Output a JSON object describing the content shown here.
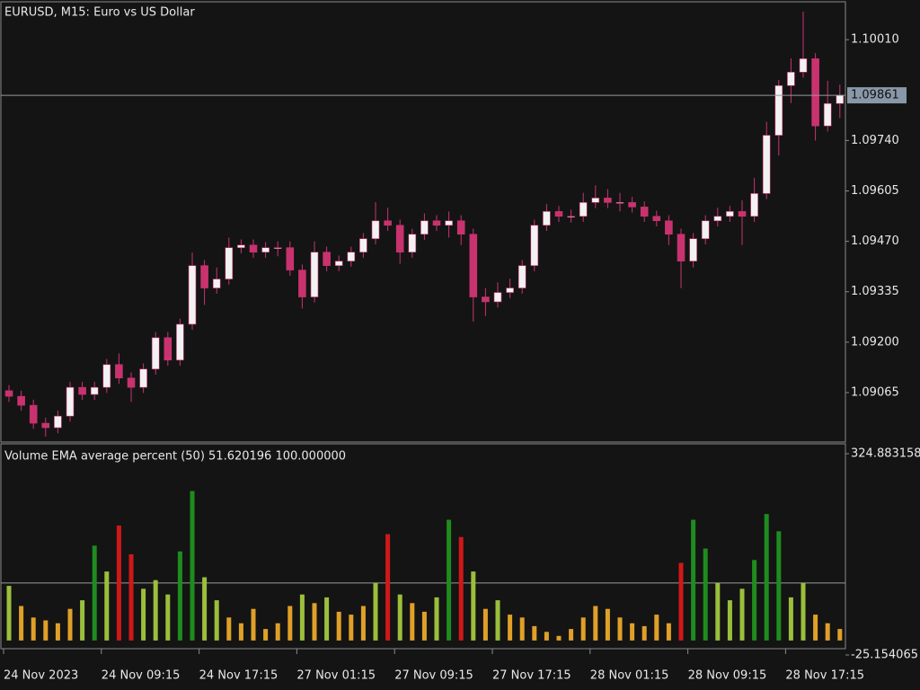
{
  "chart_data": [
    {
      "type": "candlestick",
      "title": "EURUSD, M15:  Euro vs US Dollar",
      "up_color": "#f2f2f2",
      "down_color": "#c8336f",
      "wick_color": "#c8336f",
      "open": [
        1.0907,
        1.09055,
        1.09031,
        1.08983,
        1.08971,
        1.09002,
        1.09079,
        1.0906,
        1.09079,
        1.0914,
        1.09104,
        1.09079,
        1.09128,
        1.09212,
        1.09152,
        1.09248,
        1.09405,
        1.09345,
        1.09369,
        1.09453,
        1.0946,
        1.09441,
        1.09453,
        1.09453,
        1.09393,
        1.09321,
        1.09441,
        1.09405,
        1.09417,
        1.09441,
        1.09477,
        1.09525,
        1.09513,
        1.09441,
        1.09489,
        1.09525,
        1.09513,
        1.09525,
        1.09489,
        1.09321,
        1.09308,
        1.09333,
        1.09345,
        1.09405,
        1.09513,
        1.0955,
        1.09537,
        1.09537,
        1.09574,
        1.09586,
        1.09574,
        1.09574,
        1.09562,
        1.09537,
        1.09525,
        1.09489,
        1.09417,
        1.09477,
        1.09525,
        1.09537,
        1.0955,
        1.09537,
        1.09598,
        1.09754,
        1.09887,
        1.09923,
        1.09959,
        1.09779,
        1.09839
      ],
      "high": [
        1.09085,
        1.0907,
        1.09046,
        1.08998,
        1.09017,
        1.09094,
        1.09094,
        1.09094,
        1.09155,
        1.0917,
        1.09119,
        1.09143,
        1.09227,
        1.09227,
        1.09263,
        1.0944,
        1.0942,
        1.094,
        1.0948,
        1.09475,
        1.09475,
        1.09468,
        1.0947,
        1.0947,
        1.09408,
        1.0947,
        1.09456,
        1.09432,
        1.09456,
        1.09492,
        1.09575,
        1.0956,
        1.09528,
        1.09504,
        1.09545,
        1.0954,
        1.0955,
        1.0954,
        1.09504,
        1.09345,
        1.0936,
        1.0937,
        1.0942,
        1.09528,
        1.0957,
        1.09565,
        1.09555,
        1.096,
        1.0962,
        1.0961,
        1.096,
        1.09589,
        1.09577,
        1.09552,
        1.0954,
        1.09504,
        1.09492,
        1.0954,
        1.0956,
        1.09565,
        1.0958,
        1.0964,
        1.0979,
        1.09902,
        1.0996,
        1.10085,
        1.09974,
        1.099,
        1.0989
      ],
      "low": [
        1.0904,
        1.09016,
        1.08968,
        1.08947,
        1.08956,
        1.08987,
        1.09045,
        1.09045,
        1.09064,
        1.09089,
        1.0904,
        1.09064,
        1.09113,
        1.09137,
        1.09137,
        1.09233,
        1.093,
        1.0933,
        1.09354,
        1.09438,
        1.09426,
        1.09426,
        1.0943,
        1.09378,
        1.0929,
        1.09306,
        1.0939,
        1.0939,
        1.09402,
        1.09426,
        1.09462,
        1.09498,
        1.0941,
        1.09426,
        1.09474,
        1.09498,
        1.0948,
        1.0946,
        1.09255,
        1.0927,
        1.09293,
        1.09318,
        1.0933,
        1.0939,
        1.09498,
        1.09522,
        1.0952,
        1.09522,
        1.09559,
        1.09559,
        1.0955,
        1.09547,
        1.09522,
        1.0951,
        1.0946,
        1.09345,
        1.094,
        1.09462,
        1.0951,
        1.09522,
        1.0946,
        1.09522,
        1.09583,
        1.097,
        1.0984,
        1.09908,
        1.0974,
        1.09764,
        1.098
      ],
      "close": [
        1.09055,
        1.09031,
        1.08983,
        1.08971,
        1.09002,
        1.09079,
        1.0906,
        1.09079,
        1.0914,
        1.09104,
        1.09079,
        1.09128,
        1.09212,
        1.09152,
        1.09248,
        1.09405,
        1.09345,
        1.09369,
        1.09453,
        1.0946,
        1.09441,
        1.09453,
        1.09453,
        1.09393,
        1.09321,
        1.09441,
        1.09405,
        1.09417,
        1.09441,
        1.09477,
        1.09525,
        1.09513,
        1.09441,
        1.09489,
        1.09525,
        1.09513,
        1.09525,
        1.09489,
        1.09321,
        1.09308,
        1.09333,
        1.09345,
        1.09405,
        1.09513,
        1.0955,
        1.09537,
        1.09537,
        1.09574,
        1.09586,
        1.09574,
        1.09574,
        1.09562,
        1.09537,
        1.09525,
        1.09489,
        1.09417,
        1.09477,
        1.09525,
        1.09537,
        1.0955,
        1.09537,
        1.09598,
        1.09754,
        1.09887,
        1.09923,
        1.09959,
        1.09779,
        1.09839,
        1.09861
      ],
      "last_price": 1.09861,
      "ylim": [
        1.08935,
        1.10109
      ],
      "yticks": [
        {
          "value": 1.1001,
          "label": "1.10010"
        },
        {
          "value": 1.0974,
          "label": "1.09740"
        },
        {
          "value": 1.09605,
          "label": "1.09605"
        },
        {
          "value": 1.0947,
          "label": "1.09470"
        },
        {
          "value": 1.09335,
          "label": "1.09335"
        },
        {
          "value": 1.092,
          "label": "1.09200"
        },
        {
          "value": 1.09065,
          "label": "1.09065"
        }
      ],
      "xticks": [
        {
          "value": 0,
          "label": "24 Nov 2023"
        },
        {
          "value": 8,
          "label": "24 Nov 09:15"
        },
        {
          "value": 16,
          "label": "24 Nov 17:15"
        },
        {
          "value": 24,
          "label": "27 Nov 01:15"
        },
        {
          "value": 32,
          "label": "27 Nov 09:15"
        },
        {
          "value": 40,
          "label": "27 Nov 17:15"
        },
        {
          "value": 48,
          "label": "28 Nov 01:15"
        },
        {
          "value": 56,
          "label": "28 Nov 09:15"
        },
        {
          "value": 64,
          "label": "28 Nov 17:15"
        }
      ]
    },
    {
      "type": "bar",
      "title": "Volume EMA average percent (50) 51.620196 100.000000",
      "values": [
        95,
        60,
        40,
        35,
        30,
        55,
        70,
        165,
        120,
        200,
        150,
        90,
        105,
        80,
        155,
        260,
        110,
        70,
        40,
        30,
        55,
        20,
        30,
        60,
        80,
        65,
        75,
        50,
        45,
        60,
        100,
        185,
        80,
        65,
        50,
        75,
        210,
        180,
        120,
        55,
        70,
        45,
        40,
        25,
        15,
        8,
        20,
        40,
        60,
        55,
        40,
        30,
        25,
        45,
        30,
        135,
        210,
        160,
        100,
        70,
        90,
        140,
        220,
        190,
        75,
        100,
        45,
        30,
        20
      ],
      "colors": [
        "#9bbf3c",
        "#e0a028",
        "#e0a028",
        "#e0a028",
        "#e0a028",
        "#e0a028",
        "#9bbf3c",
        "#1e8c1e",
        "#9bbf3c",
        "#d01818",
        "#d01818",
        "#9bbf3c",
        "#9bbf3c",
        "#9bbf3c",
        "#1e8c1e",
        "#1e8c1e",
        "#9bbf3c",
        "#9bbf3c",
        "#e0a028",
        "#e0a028",
        "#e0a028",
        "#e0a028",
        "#e0a028",
        "#e0a028",
        "#9bbf3c",
        "#e0a028",
        "#9bbf3c",
        "#e0a028",
        "#e0a028",
        "#e0a028",
        "#9bbf3c",
        "#d01818",
        "#9bbf3c",
        "#e0a028",
        "#e0a028",
        "#9bbf3c",
        "#1e8c1e",
        "#d01818",
        "#9bbf3c",
        "#e0a028",
        "#9bbf3c",
        "#e0a028",
        "#e0a028",
        "#e0a028",
        "#e0a028",
        "#e0a028",
        "#e0a028",
        "#e0a028",
        "#e0a028",
        "#e0a028",
        "#e0a028",
        "#e0a028",
        "#e0a028",
        "#e0a028",
        "#e0a028",
        "#d01818",
        "#1e8c1e",
        "#1e8c1e",
        "#9bbf3c",
        "#9bbf3c",
        "#9bbf3c",
        "#1e8c1e",
        "#1e8c1e",
        "#1e8c1e",
        "#9bbf3c",
        "#9bbf3c",
        "#e0a028",
        "#e0a028",
        "#e0a028"
      ],
      "levels": [
        100
      ],
      "ylim": [
        -25.154065,
        324.883158
      ],
      "yticks": [
        324.883158,
        -25.154065
      ]
    }
  ]
}
